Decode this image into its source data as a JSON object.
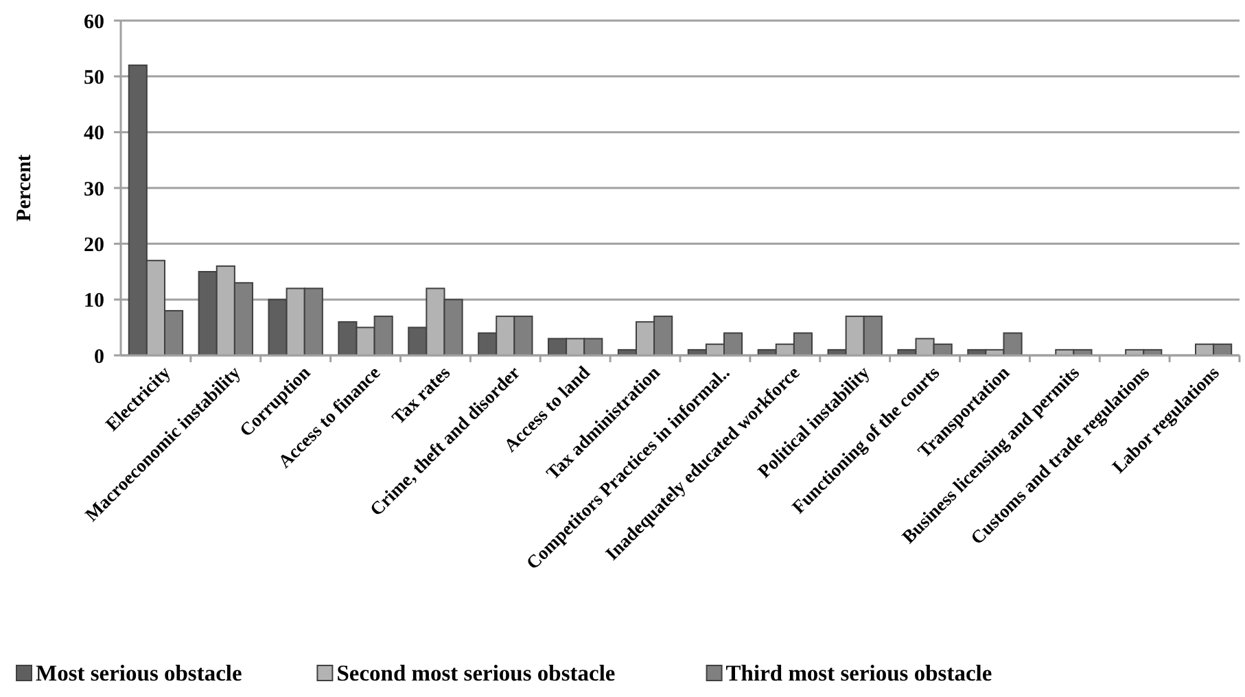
{
  "chart_data": {
    "type": "bar",
    "ylabel": "Percent",
    "categories": [
      "Electricity",
      "Macroeconomic instability",
      "Corruption",
      "Access to finance",
      "Tax rates",
      "Crime, theft and disorder",
      "Access to land",
      "Tax administration",
      "Competitors Practices in informal..",
      "Inadequately educated workforce",
      "Political instability",
      "Functioning of the courts",
      "Transportation",
      "Business licensing and permits",
      "Customs and trade regulations",
      "Labor regulations"
    ],
    "series": [
      {
        "name": "Most serious obstacle",
        "color": "#5f5f5f",
        "values": [
          52,
          15,
          10,
          6,
          5,
          4,
          3,
          1,
          1,
          1,
          1,
          1,
          1,
          0,
          0,
          0
        ]
      },
      {
        "name": "Second most serious obstacle",
        "color": "#b3b3b3",
        "values": [
          17,
          16,
          12,
          5,
          12,
          7,
          3,
          6,
          2,
          2,
          7,
          3,
          1,
          1,
          1,
          2
        ]
      },
      {
        "name": "Third most serious obstacle",
        "color": "#808080",
        "values": [
          8,
          13,
          12,
          7,
          10,
          7,
          3,
          7,
          4,
          4,
          7,
          2,
          4,
          1,
          1,
          2
        ]
      }
    ],
    "ylim": [
      0,
      60
    ],
    "yticks": [
      0,
      10,
      20,
      30,
      40,
      50,
      60
    ],
    "grid": "y",
    "legend": "bottom"
  }
}
